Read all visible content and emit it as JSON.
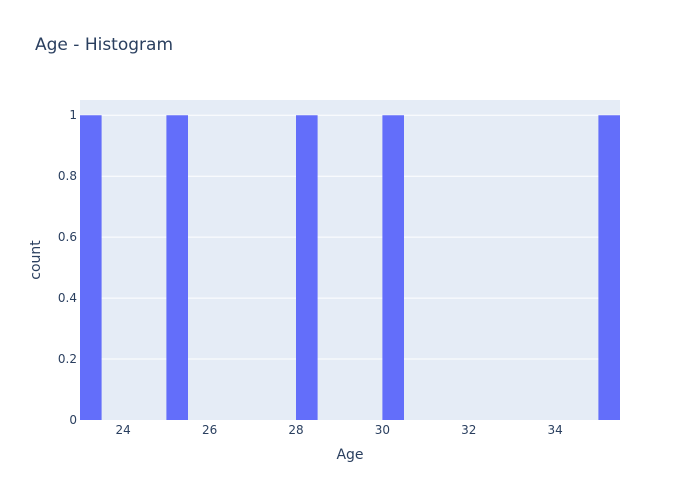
{
  "chart_data": {
    "type": "bar",
    "title": "Age - Histogram",
    "xlabel": "Age",
    "ylabel": "count",
    "bin_width": 0.5,
    "bins": [
      {
        "start": 23.0,
        "end": 23.5,
        "count": 1
      },
      {
        "start": 25.0,
        "end": 25.5,
        "count": 1
      },
      {
        "start": 28.0,
        "end": 28.5,
        "count": 1
      },
      {
        "start": 30.0,
        "end": 30.5,
        "count": 1
      },
      {
        "start": 35.0,
        "end": 35.5,
        "count": 1
      }
    ],
    "xlim": [
      23.0,
      35.5
    ],
    "ylim": [
      0,
      1.05
    ],
    "xticks": [
      24,
      26,
      28,
      30,
      32,
      34
    ],
    "yticks": [
      0,
      0.2,
      0.4,
      0.6,
      0.8,
      1
    ],
    "ytick_labels": [
      "0",
      "0.2",
      "0.4",
      "0.6",
      "0.8",
      "1"
    ],
    "grid": true,
    "colors": {
      "bar": "#636efa",
      "plot_bg": "#e5ecf6",
      "grid": "#ffffff",
      "text": "#2a3f5f"
    }
  }
}
